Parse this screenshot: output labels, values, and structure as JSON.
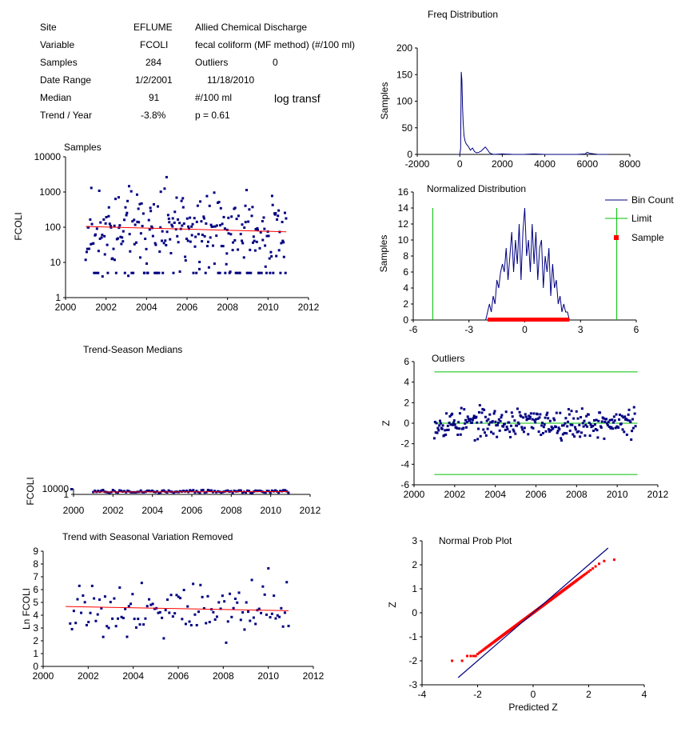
{
  "info": {
    "site_label": "Site",
    "site_code": "EFLUME",
    "site_name": "Allied Chemical Discharge",
    "variable_label": "Variable",
    "variable_code": "FCOLI",
    "variable_name": "fecal coliform (MF method) (#/100 ml)",
    "samples_label": "Samples",
    "samples_value": "284",
    "outliers_label": "Outliers",
    "outliers_value": "0",
    "date_range_label": "Date Range",
    "date_start": "1/2/2001",
    "date_end": "11/18/2010",
    "median_label": "Median",
    "median_value": "91",
    "median_unit": "#/100 ml",
    "transform_note": "log transf",
    "trend_label": "Trend / Year",
    "trend_value": "-3.8%",
    "p_value": "p = 0.61"
  },
  "chart_data": [
    {
      "id": "samples",
      "type": "scatter",
      "title": "Samples",
      "xlabel": "",
      "ylabel": "FCOLI",
      "xlim": [
        2000,
        2012
      ],
      "ylim": [
        1,
        10000
      ],
      "yscale": "log",
      "xticks": [
        "2000",
        "2002",
        "2004",
        "2006",
        "2008",
        "2010",
        "2012"
      ],
      "yticks": [
        "1",
        "10",
        "100",
        "1000",
        "10000"
      ],
      "trend_line": {
        "x": [
          2001.0,
          2010.9
        ],
        "y": [
          105,
          74
        ]
      },
      "colors": {
        "points": "#000080",
        "trend": "#ff0000"
      }
    },
    {
      "id": "freq",
      "type": "line",
      "title": "Freq Distribution",
      "xlabel": "",
      "ylabel": "Samples",
      "xlim": [
        -2000,
        8000
      ],
      "ylim": [
        0,
        200
      ],
      "xticks": [
        "-2000",
        "0",
        "2000",
        "4000",
        "6000",
        "8000"
      ],
      "yticks": [
        "0",
        "50",
        "100",
        "150",
        "200"
      ],
      "series": [
        {
          "x": [
            -100,
            0,
            40,
            70,
            100,
            130,
            160,
            200,
            250,
            300,
            400,
            500,
            600,
            700,
            800,
            900,
            1000,
            1100,
            1200,
            1300,
            1400,
            1500,
            1600,
            2000,
            2500,
            3000,
            3500,
            4000,
            4500,
            5000,
            5500,
            5900,
            6000,
            6100,
            6500,
            7000
          ],
          "y": [
            0,
            0,
            10,
            155,
            140,
            90,
            60,
            35,
            25,
            20,
            15,
            8,
            12,
            5,
            3,
            4,
            6,
            10,
            14,
            9,
            3,
            1,
            0,
            1,
            0,
            0,
            1,
            0,
            0,
            0,
            0,
            1,
            4,
            2,
            0,
            0
          ]
        }
      ],
      "colors": {
        "line": "#000080"
      }
    },
    {
      "id": "normalized",
      "type": "line",
      "title": "Normalized Distribution",
      "xlabel": "",
      "ylabel": "Samples",
      "xlim": [
        -6,
        6
      ],
      "ylim": [
        0,
        16
      ],
      "xticks": [
        "-6",
        "-3",
        "0",
        "3",
        "6"
      ],
      "yticks": [
        "0",
        "2",
        "4",
        "6",
        "8",
        "10",
        "12",
        "14",
        "16"
      ],
      "legend": [
        "Bin Count",
        "Limit",
        "Sample"
      ],
      "legend_position": "right",
      "limits": [
        -4.95,
        4.95
      ],
      "sample_range": [
        -2.0,
        2.4
      ],
      "series": [
        {
          "name": "Bin Count",
          "x": [
            -2.1,
            -2.0,
            -1.9,
            -1.8,
            -1.7,
            -1.6,
            -1.5,
            -1.4,
            -1.3,
            -1.2,
            -1.1,
            -1.0,
            -0.9,
            -0.8,
            -0.7,
            -0.6,
            -0.5,
            -0.4,
            -0.3,
            -0.2,
            -0.1,
            0.0,
            0.1,
            0.2,
            0.3,
            0.4,
            0.5,
            0.6,
            0.7,
            0.8,
            0.9,
            1.0,
            1.1,
            1.2,
            1.3,
            1.4,
            1.5,
            1.6,
            1.7,
            1.8,
            1.9,
            2.0,
            2.1,
            2.2,
            2.3,
            2.4
          ],
          "y": [
            0,
            1,
            2,
            1,
            3,
            2,
            5,
            4,
            6,
            7,
            6,
            9,
            5,
            8,
            11,
            6,
            10,
            7,
            12,
            5,
            11,
            14,
            8,
            10,
            6,
            12,
            7,
            11,
            5,
            9,
            10,
            4,
            8,
            6,
            9,
            3,
            7,
            4,
            5,
            2,
            3,
            1,
            2,
            1,
            1,
            0
          ]
        }
      ],
      "colors": {
        "line": "#000080",
        "limit": "#00c000",
        "sample": "#ff0000"
      }
    },
    {
      "id": "trend_season",
      "type": "scatter",
      "title": "Trend-Season Medians",
      "xlabel": "",
      "ylabel": "FCOLI",
      "xlim": [
        2000,
        2012
      ],
      "xticks": [
        "2000",
        "2002",
        "2004",
        "2006",
        "2008",
        "2010",
        "2012"
      ],
      "yticks": [
        "1",
        "10000"
      ],
      "trend_line": {
        "x": [
          2001.0,
          2010.9
        ],
        "y": [
          105,
          74
        ]
      },
      "colors": {
        "points": "#000080",
        "trend": "#ff0000"
      }
    },
    {
      "id": "outliers",
      "type": "scatter",
      "title": "Outliers",
      "xlabel": "",
      "ylabel": "Z",
      "xlim": [
        2000,
        2012
      ],
      "ylim": [
        -6,
        6
      ],
      "xticks": [
        "2000",
        "2002",
        "2004",
        "2006",
        "2008",
        "2010",
        "2012"
      ],
      "yticks": [
        "-6",
        "-4",
        "-2",
        "0",
        "2",
        "4",
        "6"
      ],
      "limits": [
        5,
        0,
        -5
      ],
      "colors": {
        "points": "#000080",
        "limit": "#00c000"
      }
    },
    {
      "id": "deseasonalized",
      "type": "scatter",
      "title": "Trend with Seasonal Variation Removed",
      "xlabel": "",
      "ylabel": "Ln FCOLI",
      "xlim": [
        2000,
        2012
      ],
      "ylim": [
        0,
        9
      ],
      "xticks": [
        "2000",
        "2002",
        "2004",
        "2006",
        "2008",
        "2010",
        "2012"
      ],
      "yticks": [
        "0",
        "1",
        "2",
        "3",
        "4",
        "5",
        "6",
        "7",
        "8",
        "9"
      ],
      "trend_line": {
        "x": [
          2001.0,
          2010.9
        ],
        "y": [
          4.68,
          4.35
        ]
      },
      "colors": {
        "points": "#000080",
        "trend": "#ff0000"
      }
    },
    {
      "id": "normal_prob",
      "type": "scatter",
      "title": "Normal Prob Plot",
      "xlabel": "Predicted Z",
      "ylabel": "Z",
      "xlim": [
        -4,
        4
      ],
      "ylim": [
        -3,
        3
      ],
      "xticks": [
        "-4",
        "-2",
        "0",
        "2",
        "4"
      ],
      "yticks": [
        "-3",
        "-2",
        "-1",
        "0",
        "1",
        "2",
        "3"
      ],
      "reference_line": {
        "x": [
          -2.7,
          2.7
        ],
        "y": [
          -2.7,
          2.7
        ]
      },
      "colors": {
        "points": "#ff0000",
        "line": "#000080"
      }
    }
  ]
}
